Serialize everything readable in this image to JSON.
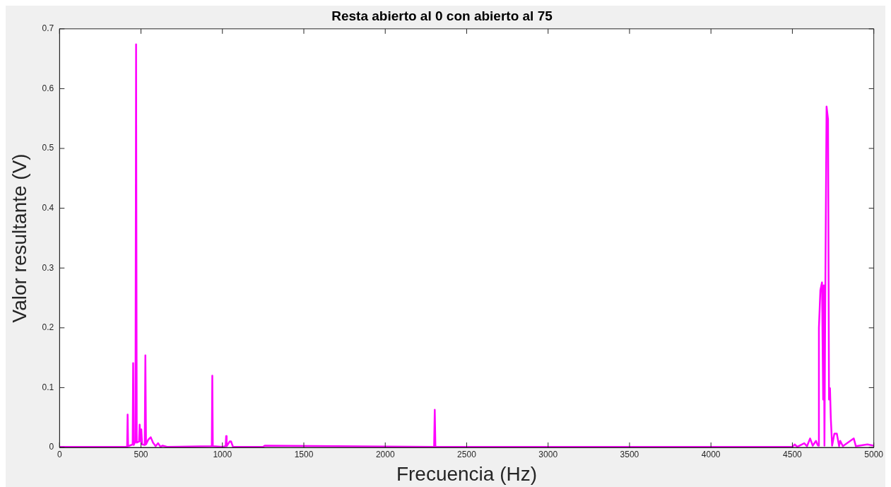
{
  "chart_data": {
    "type": "line",
    "title": "Resta abierto al 0 con abierto al 75",
    "xlabel": "Frecuencia (Hz)",
    "ylabel": "Valor resultante (V)",
    "xlim": [
      0,
      5000
    ],
    "xticks": [
      0,
      500,
      1000,
      1500,
      2000,
      2500,
      3000,
      3500,
      4000,
      4500,
      5000
    ],
    "ylim": [
      0,
      0.7
    ],
    "yticks": [
      0,
      0.1,
      0.2,
      0.3,
      0.4,
      0.5,
      0.6,
      0.7
    ],
    "grid": false,
    "legend": false,
    "marker": "none",
    "line_style": "solid",
    "series": [
      {
        "color": "#ff00ff",
        "x": [
          0,
          400,
          415,
          418,
          421,
          449,
          452,
          455,
          466,
          470,
          474,
          488,
          492,
          497,
          502,
          507,
          523,
          527,
          531,
          545,
          560,
          574,
          590,
          605,
          620,
          633,
          660,
          935,
          938,
          941,
          1000,
          1020,
          1023,
          1026,
          1045,
          1053,
          1065,
          1250,
          1260,
          2300,
          2304,
          2308,
          4500,
          4514,
          4530,
          4573,
          4590,
          4609,
          4625,
          4645,
          4655,
          4660,
          4663,
          4672,
          4682,
          4689,
          4693,
          4697,
          4703,
          4710,
          4719,
          4725,
          4731,
          4736,
          4744,
          4758,
          4773,
          4787,
          4794,
          4810,
          4877,
          4890,
          4961,
          5000
        ],
        "values": [
          0.001,
          0.001,
          0.001,
          0.055,
          0.002,
          0.005,
          0.141,
          0.004,
          0.01,
          0.674,
          0.008,
          0.01,
          0.038,
          0.01,
          0.03,
          0.005,
          0.004,
          0.154,
          0.005,
          0.013,
          0.017,
          0.008,
          0.002,
          0.007,
          0.001,
          0.003,
          0.001,
          0.002,
          0.12,
          0.002,
          0.001,
          0.002,
          0.019,
          0.002,
          0.01,
          0.01,
          0.001,
          0.001,
          0.003,
          0.001,
          0.063,
          0.001,
          0.001,
          0.005,
          0.001,
          0.007,
          0.002,
          0.015,
          0.003,
          0.011,
          0.004,
          0.003,
          0.2,
          0.263,
          0.276,
          0.08,
          0.271,
          0.003,
          0.289,
          0.57,
          0.549,
          0.08,
          0.099,
          0.049,
          0.003,
          0.023,
          0.023,
          0.002,
          0.011,
          0.002,
          0.015,
          0.002,
          0.005,
          0.003
        ]
      }
    ]
  }
}
